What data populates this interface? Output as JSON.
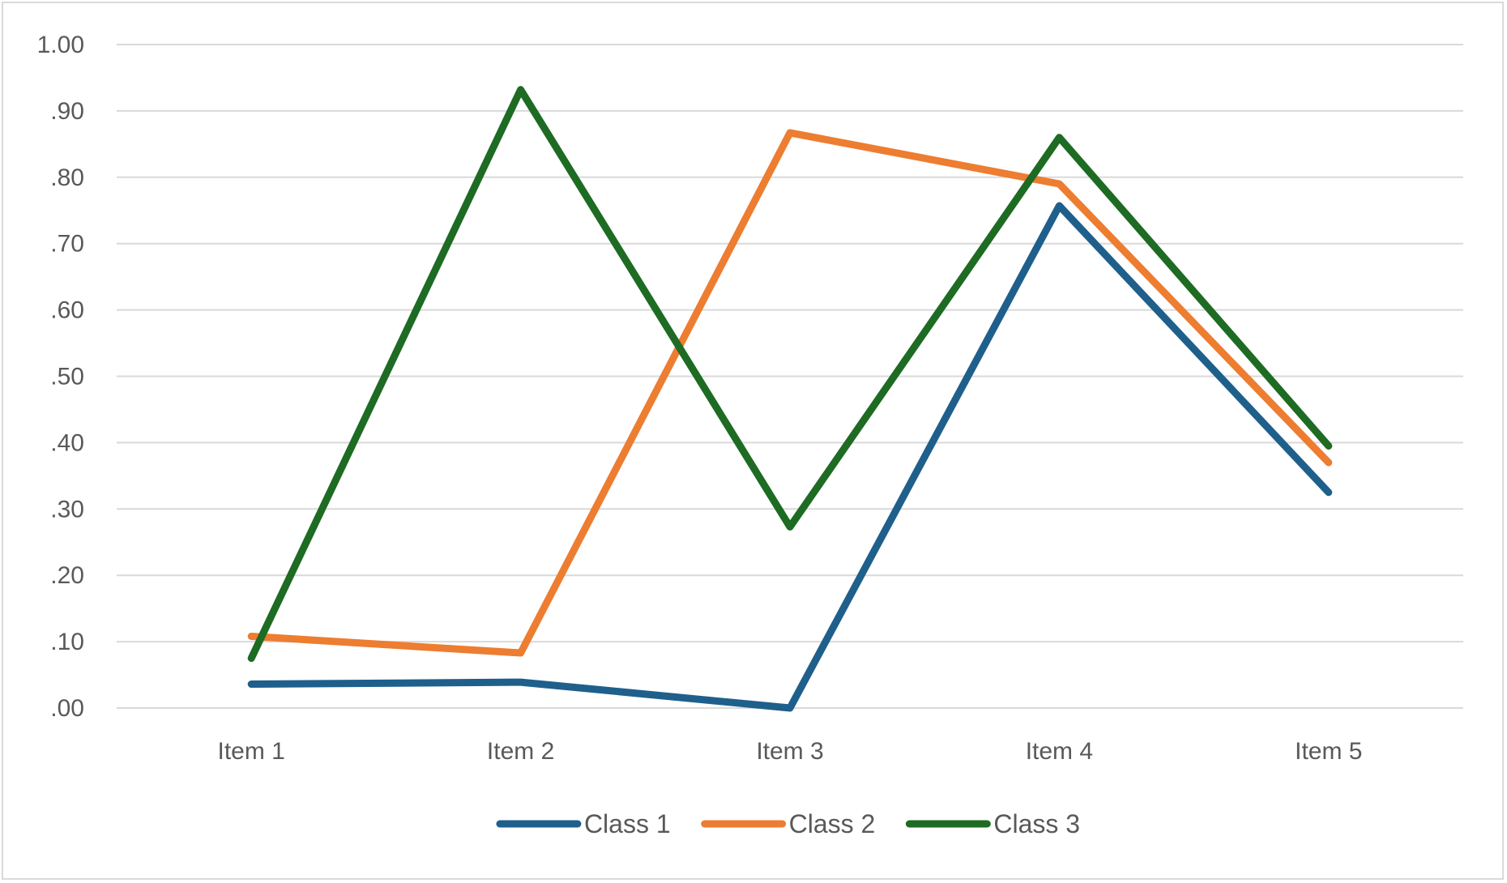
{
  "chart_data": {
    "type": "line",
    "title": "",
    "xlabel": "",
    "ylabel": "",
    "categories": [
      "Item 1",
      "Item 2",
      "Item 3",
      "Item 4",
      "Item 5"
    ],
    "ylim": [
      0,
      1
    ],
    "yticks": [
      0,
      0.1,
      0.2,
      0.3,
      0.4,
      0.5,
      0.6,
      0.7,
      0.8,
      0.9,
      1.0
    ],
    "ytick_labels": [
      ".00",
      ".10",
      ".20",
      ".30",
      ".40",
      ".50",
      ".60",
      ".70",
      ".80",
      ".90",
      "1.00"
    ],
    "grid": true,
    "legend_position": "bottom",
    "series": [
      {
        "name": "Class 1",
        "color": "#1f5f8b",
        "values": [
          0.036,
          0.039,
          0.0,
          0.757,
          0.325
        ]
      },
      {
        "name": "Class 2",
        "color": "#ed7d31",
        "values": [
          0.108,
          0.083,
          0.867,
          0.79,
          0.37
        ]
      },
      {
        "name": "Class 3",
        "color": "#1e6b23",
        "values": [
          0.075,
          0.932,
          0.273,
          0.86,
          0.395
        ]
      }
    ]
  }
}
